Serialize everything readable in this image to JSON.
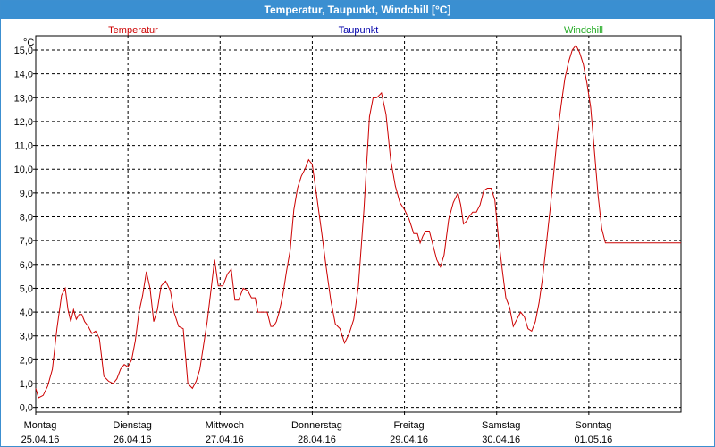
{
  "window": {
    "title": "Temperatur, Taupunkt, Windchill [°C]"
  },
  "colors": {
    "temperatur": "#cc0000",
    "taupunkt": "#0000aa",
    "windchill": "#22aa22",
    "title_bar": "#3a8fd1"
  },
  "chart_data": {
    "type": "line",
    "title": "Temperatur, Taupunkt, Windchill [°C]",
    "ylabel": "°C",
    "ylim": [
      -0.2,
      15.6
    ],
    "yticks": [
      "0,0",
      "1,0",
      "2,0",
      "3,0",
      "4,0",
      "5,0",
      "6,0",
      "7,0",
      "8,0",
      "9,0",
      "10,0",
      "11,0",
      "12,0",
      "13,0",
      "14,0",
      "15,0"
    ],
    "xlim": [
      0,
      7
    ],
    "xticks": [
      {
        "day": "Montag",
        "date": "25.04.16"
      },
      {
        "day": "Dienstag",
        "date": "26.04.16"
      },
      {
        "day": "Mittwoch",
        "date": "27.04.16"
      },
      {
        "day": "Donnerstag",
        "date": "28.04.16"
      },
      {
        "day": "Freitag",
        "date": "29.04.16"
      },
      {
        "day": "Samstag",
        "date": "30.04.16"
      },
      {
        "day": "Sonntag",
        "date": "01.05.16"
      }
    ],
    "grid": true,
    "legend": [
      "Temperatur",
      "Taupunkt",
      "Windchill"
    ],
    "series": [
      {
        "name": "Temperatur",
        "x": [
          0.0,
          0.03,
          0.08,
          0.13,
          0.18,
          0.23,
          0.28,
          0.32,
          0.35,
          0.38,
          0.41,
          0.44,
          0.47,
          0.5,
          0.53,
          0.57,
          0.61,
          0.65,
          0.69,
          0.74,
          0.79,
          0.84,
          0.88,
          0.92,
          0.96,
          1.0,
          1.04,
          1.08,
          1.12,
          1.16,
          1.2,
          1.24,
          1.28,
          1.32,
          1.36,
          1.41,
          1.46,
          1.5,
          1.55,
          1.6,
          1.65,
          1.7,
          1.74,
          1.78,
          1.82,
          1.86,
          1.9,
          1.94,
          1.98,
          2.03,
          2.08,
          2.12,
          2.16,
          2.2,
          2.25,
          2.3,
          2.34,
          2.38,
          2.41,
          2.44,
          2.47,
          2.51,
          2.55,
          2.58,
          2.61,
          2.64,
          2.68,
          2.72,
          2.76,
          2.8,
          2.84,
          2.88,
          2.92,
          2.96,
          3.0,
          3.05,
          3.1,
          3.15,
          3.2,
          3.25,
          3.3,
          3.35,
          3.4,
          3.45,
          3.5,
          3.56,
          3.62,
          3.66,
          3.7,
          3.75,
          3.8,
          3.85,
          3.9,
          3.95,
          4.0,
          4.05,
          4.1,
          4.14,
          4.17,
          4.2,
          4.23,
          4.27,
          4.31,
          4.35,
          4.39,
          4.43,
          4.48,
          4.53,
          4.58,
          4.61,
          4.64,
          4.67,
          4.7,
          4.74,
          4.78,
          4.82,
          4.86,
          4.9,
          4.94,
          4.98,
          5.02,
          5.06,
          5.1,
          5.14,
          5.18,
          5.22,
          5.26,
          5.3,
          5.34,
          5.38,
          5.42,
          5.46,
          5.5,
          5.54,
          5.58,
          5.62,
          5.66,
          5.7,
          5.74,
          5.78,
          5.82,
          5.86,
          5.9,
          5.94,
          5.98,
          6.02,
          6.06,
          6.1,
          6.14,
          6.18,
          6.22,
          6.26,
          6.3,
          6.34,
          6.38,
          6.42,
          6.46,
          6.5,
          6.54,
          6.58,
          6.62,
          6.66,
          6.7,
          6.74,
          6.78,
          6.82,
          6.86,
          6.9,
          6.94,
          6.98,
          7.0
        ],
        "y": [
          0.8,
          0.4,
          0.5,
          0.9,
          1.6,
          3.3,
          4.7,
          5.0,
          4.1,
          3.6,
          4.1,
          3.7,
          3.9,
          3.9,
          3.6,
          3.4,
          3.1,
          3.2,
          2.9,
          1.3,
          1.1,
          1.0,
          1.2,
          1.6,
          1.8,
          1.7,
          2.0,
          2.8,
          4.0,
          4.7,
          5.7,
          5.0,
          3.6,
          4.1,
          5.1,
          5.3,
          4.9,
          4.0,
          3.4,
          3.3,
          1.0,
          0.8,
          1.1,
          1.6,
          2.6,
          3.6,
          4.9,
          6.2,
          5.1,
          5.1,
          5.6,
          5.8,
          4.5,
          4.5,
          5.0,
          4.9,
          4.6,
          4.6,
          4.0,
          4.0,
          4.0,
          4.0,
          3.4,
          3.4,
          3.6,
          4.0,
          4.7,
          5.7,
          6.6,
          8.3,
          9.2,
          9.7,
          10.0,
          10.4,
          10.2,
          8.8,
          7.4,
          5.9,
          4.5,
          3.5,
          3.3,
          2.7,
          3.1,
          3.7,
          5.1,
          8.3,
          12.2,
          13.0,
          13.0,
          13.2,
          12.3,
          10.4,
          9.3,
          8.6,
          8.3,
          7.9,
          7.3,
          7.3,
          6.9,
          7.2,
          7.4,
          7.4,
          6.8,
          6.2,
          5.9,
          6.4,
          7.9,
          8.6,
          9.0,
          8.5,
          7.7,
          7.8,
          8.0,
          8.2,
          8.2,
          8.5,
          9.1,
          9.2,
          9.2,
          8.7,
          7.1,
          5.8,
          4.6,
          4.2,
          3.4,
          3.7,
          4.0,
          3.8,
          3.3,
          3.2,
          3.6,
          4.4,
          5.5,
          6.9,
          8.3,
          9.9,
          11.5,
          12.7,
          13.8,
          14.5,
          15.0,
          15.2,
          14.9,
          14.4,
          13.6,
          12.6,
          10.8,
          8.9,
          7.5,
          6.9,
          6.9,
          6.9,
          6.9,
          6.9,
          6.9,
          6.9,
          6.9,
          6.9,
          6.9,
          6.9,
          6.9,
          6.9,
          6.9,
          6.9,
          6.9,
          6.9,
          6.9,
          6.9,
          6.9,
          6.9,
          6.9
        ]
      }
    ]
  }
}
